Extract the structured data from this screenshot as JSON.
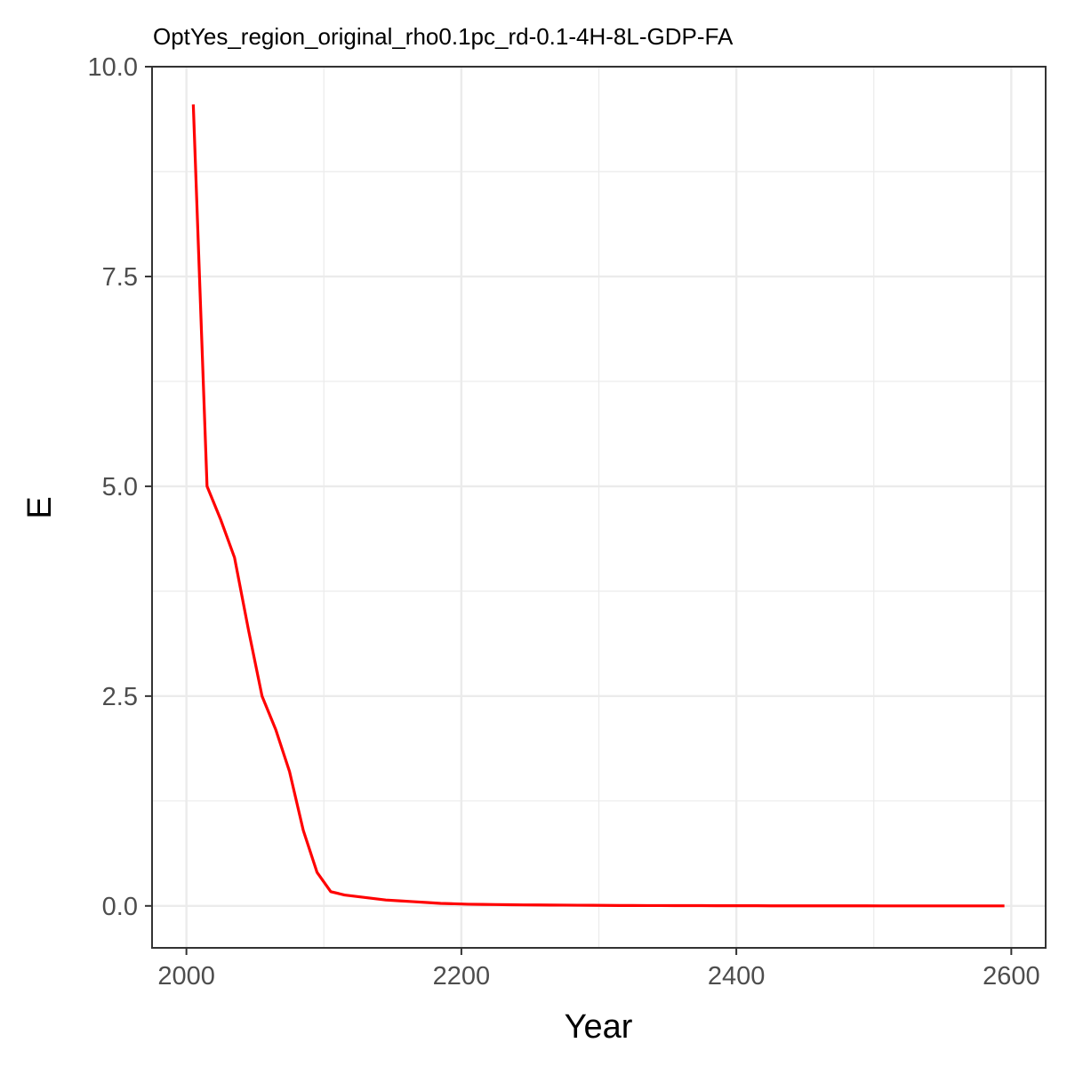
{
  "chart_data": {
    "type": "line",
    "title": "OptYes_region_original_rho0.1pc_rd-0.1-4H-8L-GDP-FA",
    "xlabel": "Year",
    "ylabel": "E",
    "xlim": [
      1975,
      2625
    ],
    "ylim": [
      -0.5,
      10.0
    ],
    "x_ticks": [
      2000,
      2200,
      2400,
      2600
    ],
    "x_tick_labels": [
      "2000",
      "2200",
      "2400",
      "2600"
    ],
    "y_ticks": [
      0,
      2.5,
      5,
      7.5,
      10
    ],
    "y_tick_labels": [
      "0.0",
      "2.5",
      "5.0",
      "7.5",
      "10.0"
    ],
    "grid": true,
    "series": [
      {
        "color": "#ff0000",
        "x": [
          2005,
          2015,
          2025,
          2035,
          2045,
          2055,
          2065,
          2075,
          2085,
          2095,
          2105,
          2115,
          2125,
          2135,
          2145,
          2155,
          2165,
          2175,
          2185,
          2195,
          2205,
          2215,
          2225,
          2235,
          2245,
          2255,
          2265,
          2275,
          2285,
          2295,
          2305,
          2315,
          2325,
          2335,
          2345,
          2355,
          2365,
          2375,
          2385,
          2395,
          2405,
          2415,
          2425,
          2435,
          2445,
          2455,
          2465,
          2475,
          2485,
          2495,
          2505,
          2515,
          2525,
          2535,
          2545,
          2555,
          2565,
          2575,
          2585,
          2595
        ],
        "y": [
          9.55,
          5.0,
          4.6,
          4.15,
          3.3,
          2.5,
          2.1,
          1.6,
          0.9,
          0.4,
          0.17,
          0.13,
          0.11,
          0.09,
          0.07,
          0.06,
          0.05,
          0.04,
          0.03,
          0.025,
          0.02,
          0.018,
          0.016,
          0.014,
          0.012,
          0.011,
          0.01,
          0.009,
          0.008,
          0.007,
          0.006,
          0.005,
          0.005,
          0.004,
          0.004,
          0.003,
          0.003,
          0.003,
          0.002,
          0.002,
          0.002,
          0.002,
          0.001,
          0.001,
          0.001,
          0.001,
          0.001,
          0.001,
          0.001,
          0.001,
          0.0,
          0.0,
          0.0,
          0.0,
          0.0,
          0.0,
          0.0,
          0.0,
          0.0,
          0.0
        ]
      }
    ]
  }
}
